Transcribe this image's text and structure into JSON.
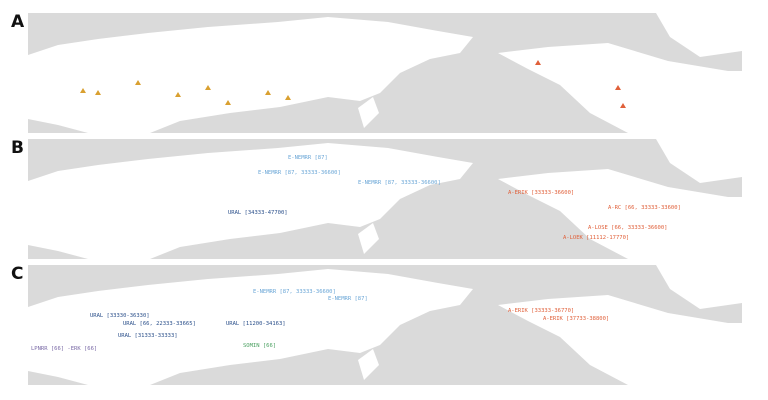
{
  "panels": [
    {
      "label": "A"
    },
    {
      "label": "B",
      "annotations": [
        {
          "text": "URAL [34333-47700]"
        },
        {
          "text": "E-NEMRR [87]"
        },
        {
          "text": "E-NEMRR [87, 33333-36600]"
        },
        {
          "text": "E-NEMRR [87, 33333-36600]"
        },
        {
          "text": "A-ERIK [33333-36600]"
        },
        {
          "text": "A-RC [66, 33333-33600]"
        },
        {
          "text": "A-LOSE [66, 33333-36600]"
        },
        {
          "text": "A-LOEK [11112-17770]"
        }
      ]
    },
    {
      "label": "C",
      "annotations": [
        {
          "text": "URAL [33330-36330]"
        },
        {
          "text": "URAL [66, 22333-33665]"
        },
        {
          "text": "URAL [11200-34163]"
        },
        {
          "text": "URAL [31333-33333]"
        },
        {
          "text": "E-NEMRR [87, 33333-36600]"
        },
        {
          "text": "E-NEMRR [87]"
        },
        {
          "text": "A-ERIK [33333-36770]"
        },
        {
          "text": "A-ERIK [37733-38800]"
        },
        {
          "text": "LPNRR [66] -ERK [66]"
        },
        {
          "text": "SOMIN [66]"
        }
      ]
    }
  ]
}
